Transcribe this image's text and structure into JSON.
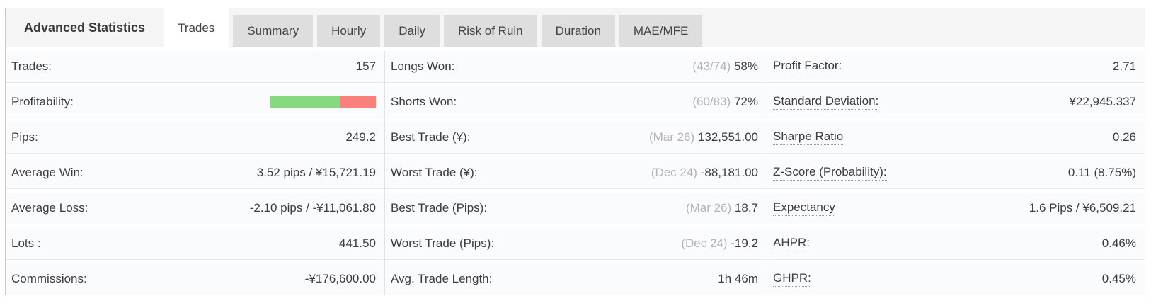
{
  "tabs": {
    "header_label": "Advanced Statistics",
    "items": [
      {
        "label": "Trades",
        "active": true
      },
      {
        "label": "Summary",
        "active": false
      },
      {
        "label": "Hourly",
        "active": false
      },
      {
        "label": "Daily",
        "active": false
      },
      {
        "label": "Risk of Ruin",
        "active": false
      },
      {
        "label": "Duration",
        "active": false
      },
      {
        "label": "MAE/MFE",
        "active": false
      }
    ]
  },
  "stats": {
    "columns": [
      {
        "rows": [
          {
            "label": "Trades:",
            "value": "157"
          },
          {
            "label": "Profitability:",
            "type": "bar",
            "bar": {
              "win_pct": 66,
              "loss_pct": 34
            }
          },
          {
            "label": "Pips:",
            "value": "249.2"
          },
          {
            "label": "Average Win:",
            "value": "3.52 pips / ¥15,721.19"
          },
          {
            "label": "Average Loss:",
            "value": "-2.10 pips / -¥11,061.80"
          },
          {
            "label": "Lots :",
            "value": "441.50"
          },
          {
            "label": "Commissions:",
            "value": "-¥176,600.00"
          }
        ]
      },
      {
        "rows": [
          {
            "label": "Longs Won:",
            "muted": "(43/74)",
            "value": "58%"
          },
          {
            "label": "Shorts Won:",
            "muted": "(60/83)",
            "value": "72%"
          },
          {
            "label": "Best Trade (¥):",
            "muted": "(Mar 26)",
            "value": "132,551.00"
          },
          {
            "label": "Worst Trade (¥):",
            "muted": "(Dec 24)",
            "value": "-88,181.00"
          },
          {
            "label": "Best Trade (Pips):",
            "muted": "(Mar 26)",
            "value": "18.7"
          },
          {
            "label": "Worst Trade (Pips):",
            "muted": "(Dec 24)",
            "value": "-19.2"
          },
          {
            "label": "Avg. Trade Length:",
            "value": "1h 46m"
          }
        ]
      },
      {
        "rows": [
          {
            "label": "Profit Factor:",
            "underline": true,
            "value": "2.71"
          },
          {
            "label": "Standard Deviation:",
            "underline": true,
            "value": "¥22,945.337"
          },
          {
            "label": "Sharpe Ratio",
            "underline": true,
            "value": "0.26"
          },
          {
            "label": "Z-Score (Probability):",
            "underline": true,
            "value": "0.11 (8.75%)"
          },
          {
            "label": "Expectancy",
            "underline": true,
            "value": "1.6 Pips / ¥6,509.21"
          },
          {
            "label": "AHPR:",
            "underline": true,
            "value": "0.46%"
          },
          {
            "label": "GHPR:",
            "underline": true,
            "value": "0.45%"
          }
        ]
      }
    ]
  },
  "colors": {
    "win_green": "#85da7f",
    "loss_red": "#f9817b",
    "active_tab_bg": "#ffffff",
    "inactive_tab_bg": "#dedede",
    "strip_bg": "#f5f5f6",
    "muted_text": "#b4b4b4"
  }
}
